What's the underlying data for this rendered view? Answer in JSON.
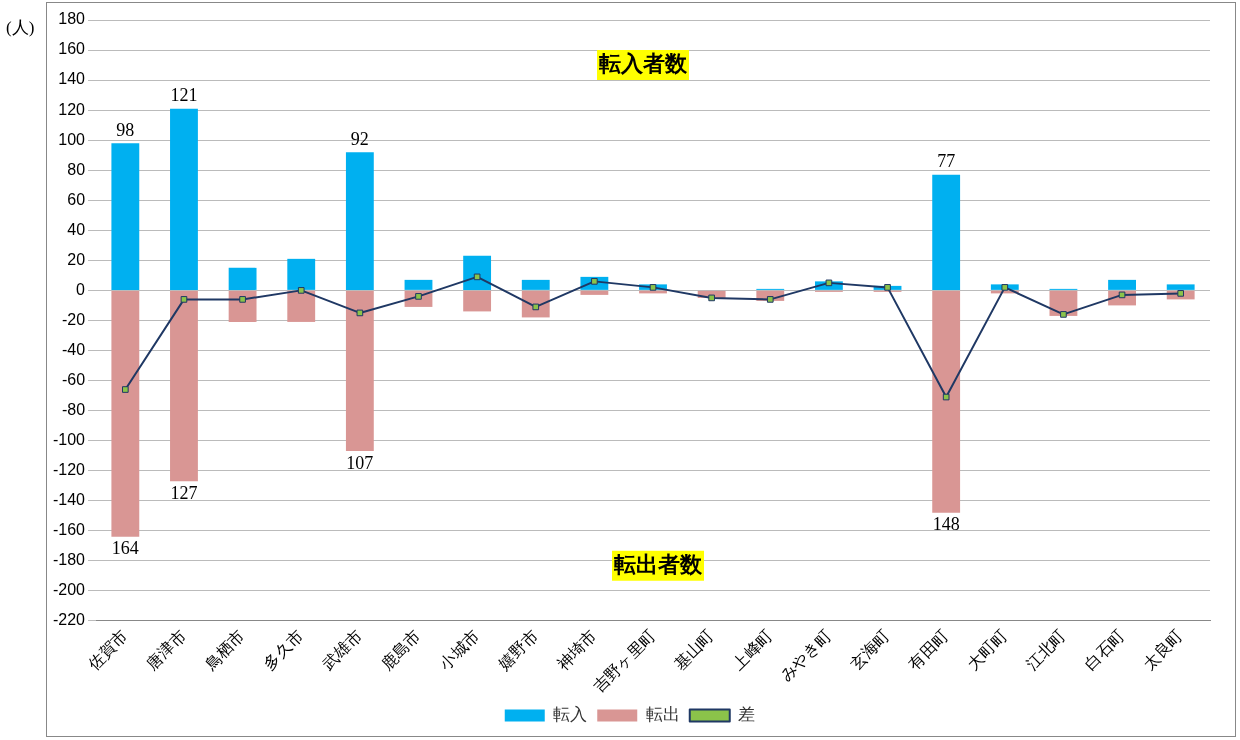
{
  "chart_data": {
    "type": "bar",
    "ylabel": "(人)",
    "categories": [
      "佐賀市",
      "唐津市",
      "鳥栖市",
      "多久市",
      "武雄市",
      "鹿島市",
      "小城市",
      "嬉野市",
      "神埼市",
      "吉野ヶ里町",
      "基山町",
      "上峰町",
      "みやき町",
      "玄海町",
      "有田町",
      "大町町",
      "江北町",
      "白石町",
      "太良町"
    ],
    "series": [
      {
        "name": "転入",
        "color": "#00b0f0",
        "values": [
          98,
          121,
          15,
          21,
          92,
          7,
          23,
          7,
          9,
          4,
          0,
          1,
          6,
          3,
          77,
          4,
          1,
          7,
          4
        ],
        "value_labels": [
          "98",
          "121",
          null,
          null,
          "92",
          null,
          null,
          null,
          null,
          null,
          null,
          null,
          null,
          null,
          "77",
          null,
          null,
          null,
          null
        ]
      },
      {
        "name": "転出",
        "color": "#d99694",
        "values": [
          -164,
          -127,
          -21,
          -21,
          -107,
          -11,
          -14,
          -18,
          -3,
          -2,
          -5,
          -7,
          -1,
          -1,
          -148,
          -2,
          -17,
          -10,
          -6
        ]
      },
      {
        "name": "差",
        "type": "line",
        "color": "#1f3864",
        "values": [
          -66,
          -6,
          -6,
          0,
          -15,
          -4,
          9,
          -11,
          6,
          2,
          -5,
          -6,
          5,
          2,
          -71,
          2,
          -16,
          -3,
          -2
        ]
      }
    ],
    "stacked": true,
    "marker": "square",
    "line_style": "solid",
    "ylim": [
      -220,
      180
    ],
    "yticks": [
      -220,
      -200,
      -180,
      -160,
      -140,
      -120,
      -100,
      -80,
      -60,
      -40,
      -20,
      0,
      20,
      40,
      60,
      80,
      100,
      120,
      140,
      160,
      180
    ],
    "grid": "y",
    "legend": "bottom",
    "annotations": [
      "転入者数",
      "転出者数",
      {
        "text": "164",
        "x": "佐賀市",
        "y": -164
      },
      {
        "text": "127",
        "x": "唐津市",
        "y": -127
      },
      {
        "text": "107",
        "x": "武雄市",
        "y": -107
      },
      {
        "text": "148",
        "x": "有田町",
        "y": -148
      }
    ]
  }
}
